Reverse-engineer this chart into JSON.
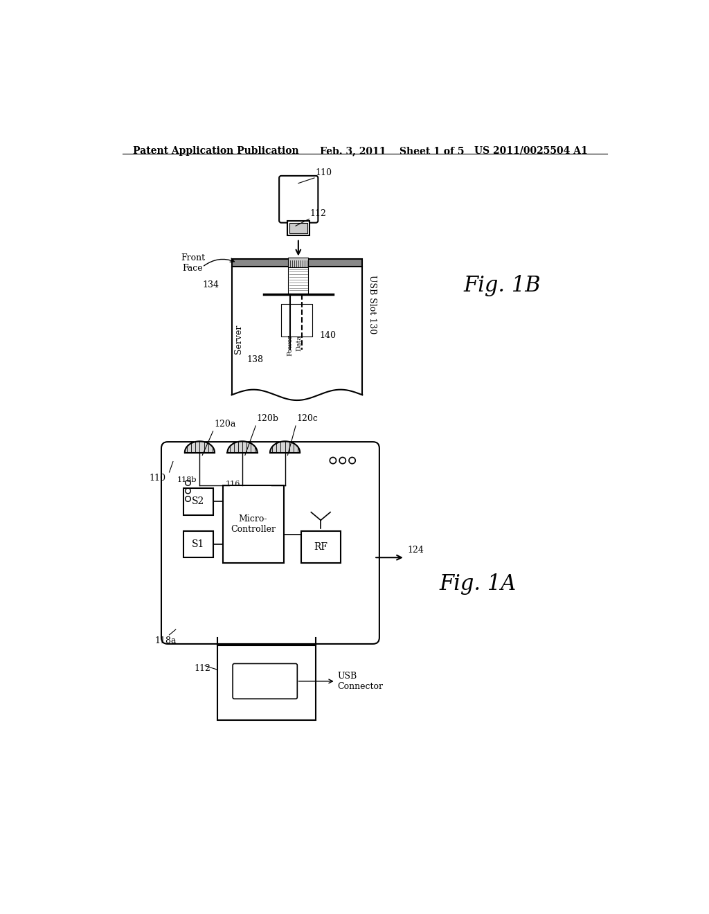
{
  "bg_color": "#ffffff",
  "header_left": "Patent Application Publication",
  "header_mid": "Feb. 3, 2011    Sheet 1 of 5",
  "header_right": "US 2011/0025504 A1",
  "fig1b_label": "Fig. 1B",
  "fig1a_label": "Fig. 1A"
}
